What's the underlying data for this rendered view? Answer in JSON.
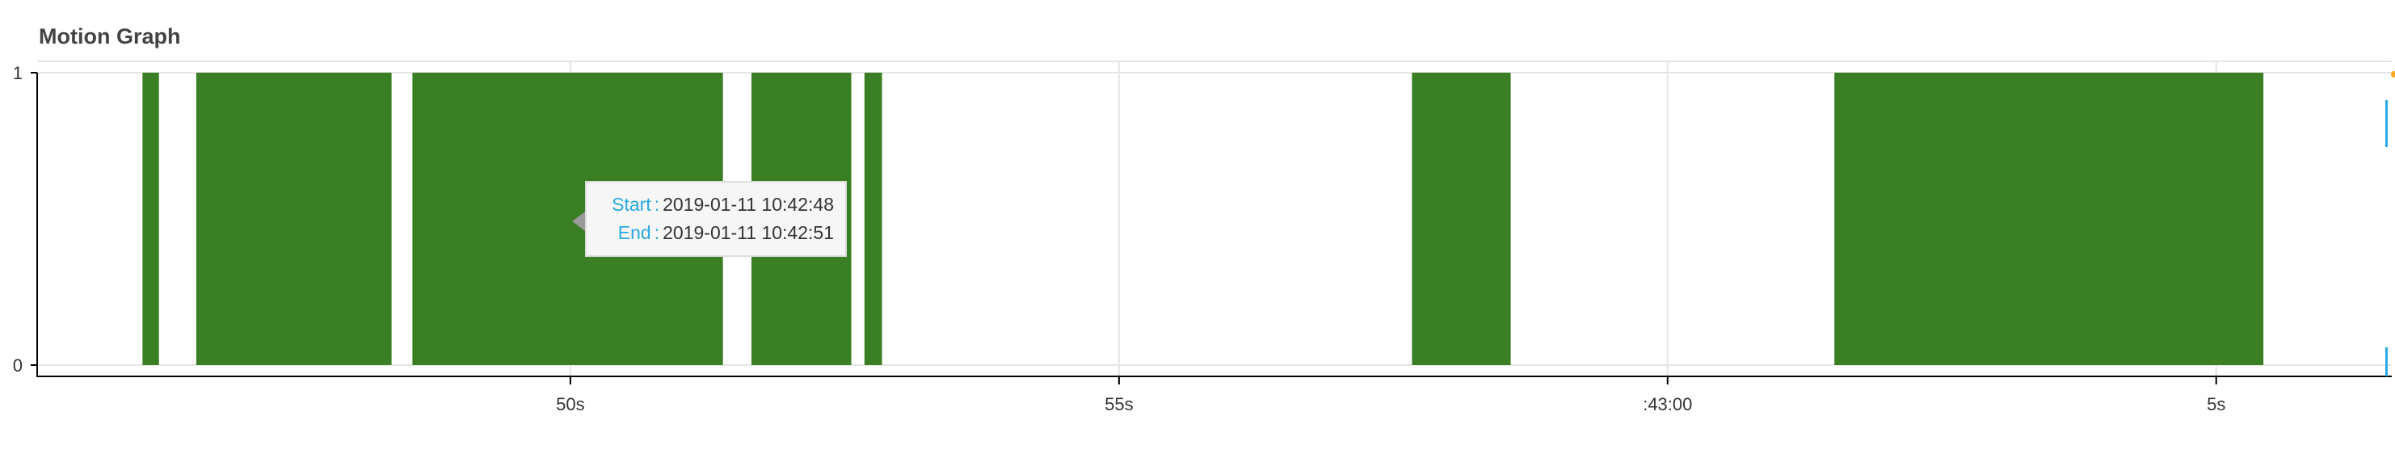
{
  "chart_data": {
    "type": "bar",
    "title": "Motion Graph",
    "xlabel": "",
    "ylabel": "",
    "x_axis": {
      "type": "time",
      "range": [
        "2019-01-11 10:42:45.14",
        "2019-01-11 10:43:06.60"
      ],
      "ticks": [
        {
          "time": "2019-01-11 10:42:50",
          "label": "50s"
        },
        {
          "time": "2019-01-11 10:42:55",
          "label": "55s"
        },
        {
          "time": "2019-01-11 10:43:00",
          "label": ":43:00"
        },
        {
          "time": "2019-01-11 10:43:05",
          "label": "5s"
        }
      ]
    },
    "y_axis": {
      "ylim": [
        0,
        1
      ],
      "ticks": [
        {
          "value": 0,
          "label": "0"
        },
        {
          "value": 1,
          "label": "1"
        }
      ]
    },
    "grid": true,
    "series": [
      {
        "color": "#3a7f24",
        "segments": [
          {
            "start": "2019-01-11 10:42:46.10",
            "end": "2019-01-11 10:42:46.25",
            "value": 1
          },
          {
            "start": "2019-01-11 10:42:46.59",
            "end": "2019-01-11 10:42:48.37",
            "value": 1
          },
          {
            "start": "2019-01-11 10:42:48.56",
            "end": "2019-01-11 10:42:51.39",
            "value": 1
          },
          {
            "start": "2019-01-11 10:42:51.65",
            "end": "2019-01-11 10:42:52.56",
            "value": 1
          },
          {
            "start": "2019-01-11 10:42:52.68",
            "end": "2019-01-11 10:42:52.84",
            "value": 1
          },
          {
            "start": "2019-01-11 10:42:57.67",
            "end": "2019-01-11 10:42:58.57",
            "value": 1
          },
          {
            "start": "2019-01-11 10:43:01.52",
            "end": "2019-01-11 10:43:05.43",
            "value": 1
          }
        ]
      }
    ]
  },
  "tooltip": {
    "rows": [
      {
        "key": "Start",
        "sep": ":",
        "value": "2019-01-11 10:42:48"
      },
      {
        "key": "End",
        "sep": ":",
        "value": "2019-01-11 10:42:51"
      }
    ]
  },
  "colors": {
    "bar": "#3a7f24",
    "axis": "#000000",
    "grid": "#e5e5e5",
    "tooltip_key": "#26aae1",
    "edge_marker": "#26aae1",
    "edge_handle": "#f5a623"
  }
}
